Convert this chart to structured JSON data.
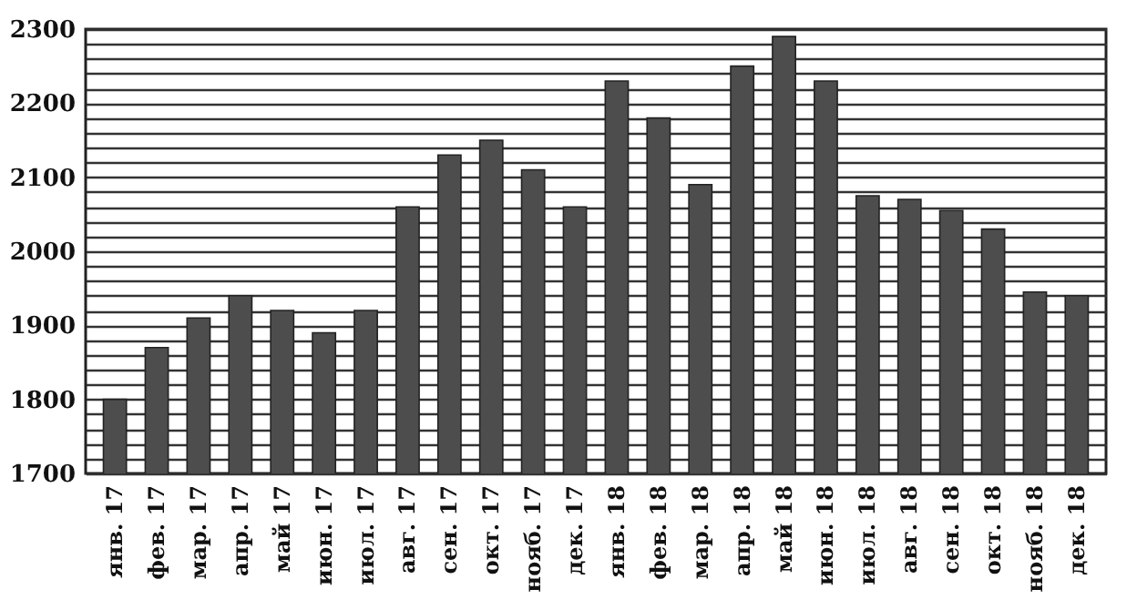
{
  "chart_data": {
    "type": "bar",
    "categories": [
      "янв. 17",
      "фев. 17",
      "мар. 17",
      "апр. 17",
      "май 17",
      "июн. 17",
      "июл. 17",
      "авг. 17",
      "сен. 17",
      "окт. 17",
      "нояб. 17",
      "дек. 17",
      "янв. 18",
      "фев. 18",
      "мар. 18",
      "апр. 18",
      "май 18",
      "июн. 18",
      "июл. 18",
      "авг. 18",
      "сен. 18",
      "окт. 18",
      "нояб. 18",
      "дек. 18"
    ],
    "values": [
      1800,
      1870,
      1910,
      1940,
      1920,
      1890,
      1920,
      2060,
      2130,
      2150,
      2110,
      2060,
      2230,
      2180,
      2090,
      2250,
      2290,
      2230,
      2075,
      2070,
      2055,
      2030,
      1945,
      1940
    ],
    "color": "#4d4d4d",
    "ylim": [
      1700,
      2300
    ],
    "yticks": [
      1700,
      {
        "value": 1720,
        "label": null
      },
      {
        "value": 1740,
        "label": null
      },
      {
        "value": 1760,
        "label": null
      },
      {
        "value": 1780,
        "label": null
      },
      1800,
      {
        "value": 1820,
        "label": null
      },
      {
        "value": 1840,
        "label": null
      },
      {
        "value": 1860,
        "label": null
      },
      {
        "value": 1880,
        "label": null
      },
      1900,
      {
        "value": 1920,
        "label": null
      },
      {
        "value": 1940,
        "label": null
      },
      {
        "value": 1960,
        "label": null
      },
      {
        "value": 1980,
        "label": null
      },
      2000,
      {
        "value": 2020,
        "label": null
      },
      {
        "value": 2040,
        "label": null
      },
      {
        "value": 2060,
        "label": null
      },
      {
        "value": 2080,
        "label": null
      },
      2100,
      {
        "value": 2120,
        "label": null
      },
      {
        "value": 2140,
        "label": null
      },
      {
        "value": 2160,
        "label": null
      },
      {
        "value": 2180,
        "label": null
      },
      2200,
      {
        "value": 2220,
        "label": null
      },
      {
        "value": 2240,
        "label": null
      },
      {
        "value": 2260,
        "label": null
      },
      {
        "value": 2280,
        "label": null
      },
      2300
    ],
    "grid": "y"
  }
}
